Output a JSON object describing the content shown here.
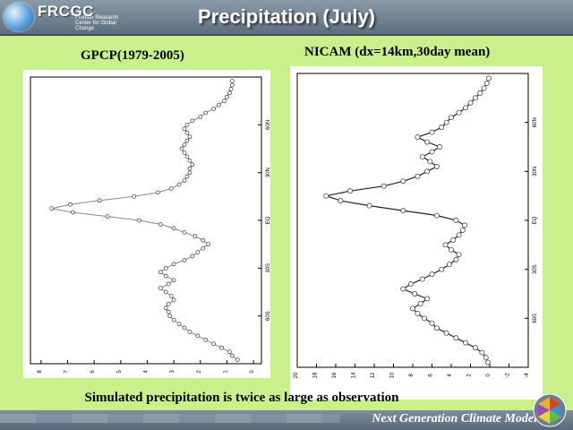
{
  "header": {
    "logo_name": "FRCGC",
    "logo_sub": "Frontier Research Center for Global Change",
    "title": "Precipitation (July)"
  },
  "caption": "Simulated precipitation is twice as large as observation",
  "footer": {
    "text": "Next Generation Climate Model"
  },
  "chart_data": [
    {
      "type": "line",
      "title": "GPCP(1979-2005)",
      "orientation": "rotated-90",
      "xlabel": "",
      "ylabel": "",
      "x_ticks": [
        "60S",
        "30S",
        "EQ",
        "30N",
        "60N"
      ],
      "x_tick_values": [
        -60,
        -30,
        0,
        30,
        60
      ],
      "y_ticks": [
        "0",
        "1",
        "2",
        "3",
        "4",
        "5",
        "6",
        "7",
        "8"
      ],
      "y_tick_values": [
        0,
        1,
        2,
        3,
        4,
        5,
        6,
        7,
        8
      ],
      "xlim": [
        -90,
        90
      ],
      "ylim": [
        -0.3,
        8.4
      ],
      "grid": false,
      "series": [
        {
          "x": [
            -87.5,
            -85,
            -82.5,
            -80,
            -77.5,
            -75,
            -72.5,
            -70,
            -67.5,
            -65,
            -62.5,
            -60,
            -57.5,
            -55,
            -52.5,
            -50,
            -47.5,
            -45,
            -42.5,
            -40,
            -37.5,
            -35,
            -32.5,
            -30,
            -27.5,
            -25,
            -22.5,
            -20,
            -17.5,
            -15,
            -12.5,
            -10,
            -7.5,
            -5,
            -2.5,
            0,
            2.5,
            5,
            7.5,
            10,
            12.5,
            15,
            17.5,
            20,
            22.5,
            25,
            27.5,
            30,
            32.5,
            35,
            37.5,
            40,
            42.5,
            45,
            47.5,
            50,
            52.5,
            55,
            57.5,
            60,
            62.5,
            65,
            67.5,
            70,
            72.5,
            75,
            77.5,
            80,
            82.5,
            85,
            87.5
          ],
          "values": [
            0.6,
            0.8,
            0.9,
            1.2,
            1.5,
            1.8,
            2.1,
            2.4,
            2.6,
            2.8,
            3.0,
            3.15,
            3.2,
            3.3,
            3.2,
            3.0,
            3.1,
            3.3,
            3.5,
            3.2,
            3.0,
            3.3,
            3.5,
            3.3,
            3.0,
            2.6,
            2.3,
            2.1,
            1.9,
            1.7,
            1.9,
            2.2,
            2.6,
            3.0,
            3.5,
            4.3,
            5.5,
            6.8,
            7.6,
            6.9,
            5.8,
            4.5,
            3.6,
            3.1,
            2.8,
            2.6,
            2.5,
            2.4,
            2.4,
            2.3,
            2.4,
            2.5,
            2.6,
            2.7,
            2.6,
            2.5,
            2.4,
            2.5,
            2.6,
            2.5,
            2.3,
            2.0,
            1.8,
            1.5,
            1.3,
            1.1,
            1.0,
            0.9,
            0.85,
            0.8,
            0.8
          ]
        }
      ]
    },
    {
      "type": "line",
      "title": "NICAM (dx=14km,30day mean)",
      "orientation": "rotated-90",
      "xlabel": "",
      "ylabel": "",
      "x_ticks": [
        "60S",
        "30S",
        "EQ",
        "30N",
        "60N"
      ],
      "x_tick_values": [
        -60,
        -30,
        0,
        30,
        60
      ],
      "y_ticks": [
        "-4",
        "-2",
        "0",
        "2",
        "4",
        "6",
        "8",
        "10",
        "12",
        "14",
        "16",
        "18",
        "20"
      ],
      "y_tick_values": [
        -4,
        -2,
        0,
        2,
        4,
        6,
        8,
        10,
        12,
        14,
        16,
        18,
        20
      ],
      "xlim": [
        -90,
        90
      ],
      "ylim": [
        -4,
        20
      ],
      "grid": false,
      "series": [
        {
          "x": [
            -87,
            -84,
            -81,
            -78,
            -75,
            -72,
            -69,
            -66,
            -63,
            -60,
            -57,
            -54,
            -51,
            -48,
            -45,
            -42,
            -39,
            -36,
            -33,
            -30,
            -27,
            -24,
            -21,
            -18,
            -15,
            -12,
            -9,
            -6,
            -3,
            0,
            3,
            6,
            9,
            12,
            15,
            18,
            21,
            24,
            27,
            30,
            33,
            36,
            39,
            42,
            45,
            48,
            51,
            54,
            57,
            60,
            63,
            66,
            69,
            72,
            75,
            78,
            81,
            84,
            87
          ],
          "values": [
            0.2,
            0.4,
            0.8,
            1.5,
            2.5,
            3.5,
            4.5,
            5.5,
            6.0,
            6.8,
            7.5,
            8.0,
            7.2,
            6.5,
            7.8,
            9.0,
            8.2,
            7.0,
            6.0,
            5.0,
            4.2,
            3.5,
            3.2,
            4.0,
            4.6,
            3.8,
            3.2,
            2.8,
            2.6,
            3.5,
            5.5,
            9.0,
            12.5,
            15.5,
            17.0,
            14.5,
            11.0,
            9.0,
            7.5,
            6.5,
            5.5,
            6.2,
            7.0,
            6.0,
            5.2,
            6.5,
            7.5,
            6.0,
            5.0,
            4.5,
            4.0,
            3.2,
            2.5,
            2.0,
            1.5,
            1.0,
            0.6,
            0.3,
            0.1
          ]
        }
      ]
    }
  ]
}
